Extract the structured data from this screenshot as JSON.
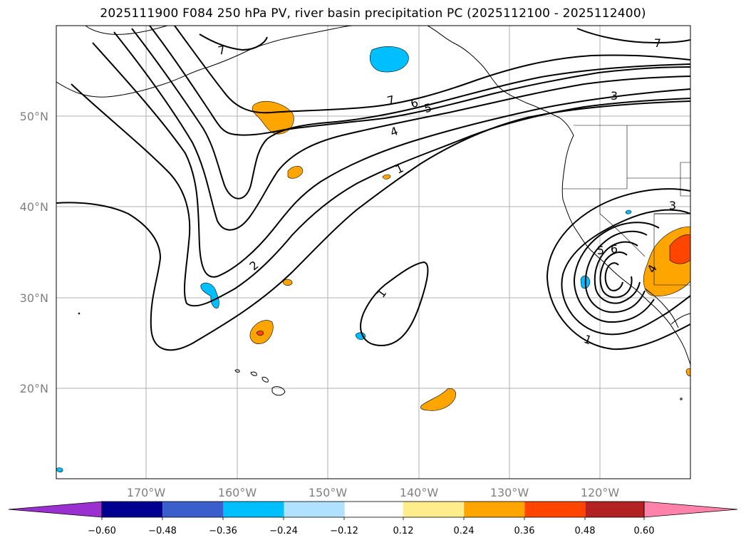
{
  "title": "2025111900 F084 250 hPa PV, river basin precipitation PC (2025112100 - 2025112400)",
  "map": {
    "lat_labels": [
      "50°N",
      "40°N",
      "30°N",
      "20°N"
    ],
    "lon_labels": [
      "170°W",
      "160°W",
      "150°W",
      "140°W",
      "130°W",
      "120°W"
    ],
    "pv_contour_labels": [
      "7",
      "7",
      "7",
      "6",
      "5",
      "4",
      "1",
      "2",
      "1",
      "3",
      "3",
      "5",
      "6",
      "4",
      "1"
    ]
  },
  "colorbar": {
    "ticks": [
      "−0.60",
      "−0.48",
      "−0.36",
      "−0.24",
      "−0.12",
      "0.12",
      "0.24",
      "0.36",
      "0.48",
      "0.60"
    ],
    "colors": [
      "#9b30d0",
      "#000090",
      "#3a5fcd",
      "#00bfff",
      "#b0e2ff",
      "#ffffff",
      "#ffec8b",
      "#ffa500",
      "#ff4500",
      "#b22222",
      "#ff82ab"
    ]
  }
}
